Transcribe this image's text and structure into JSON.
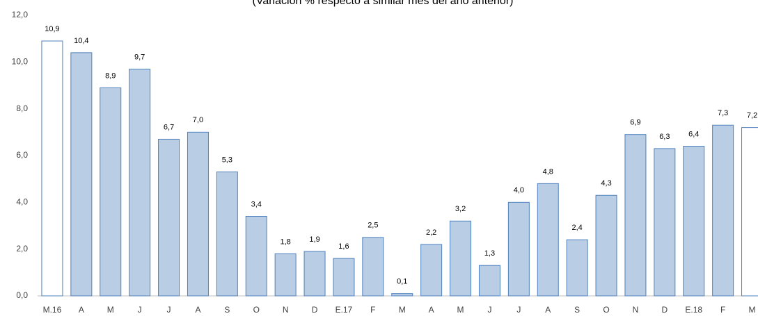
{
  "chart_data": {
    "type": "bar",
    "subtitle": "(Variación % respecto a similar mes del año anterior)",
    "categories": [
      "M.16",
      "A",
      "M",
      "J",
      "J",
      "A",
      "S",
      "O",
      "N",
      "D",
      "E.17",
      "F",
      "M",
      "A",
      "M",
      "J",
      "J",
      "A",
      "S",
      "O",
      "N",
      "D",
      "E.18",
      "F",
      "M"
    ],
    "values": [
      10.9,
      10.4,
      8.9,
      9.7,
      6.7,
      7.0,
      5.3,
      3.4,
      1.8,
      1.9,
      1.6,
      2.5,
      0.1,
      2.2,
      3.2,
      1.3,
      4.0,
      4.8,
      2.4,
      4.3,
      6.9,
      6.3,
      6.4,
      7.3,
      7.2
    ],
    "value_labels": [
      "10,9",
      "10,4",
      "8,9",
      "9,7",
      "6,7",
      "7,0",
      "5,3",
      "3,4",
      "1,8",
      "1,9",
      "1,6",
      "2,5",
      "0,1",
      "2,2",
      "3,2",
      "1,3",
      "4,0",
      "4,8",
      "2,4",
      "4,3",
      "6,9",
      "6,3",
      "6,4",
      "7,3",
      "7,2"
    ],
    "colors": [
      "#ffffff",
      "#b9cde5",
      "#b9cde5",
      "#b9cde5",
      "#b9cde5",
      "#b9cde5",
      "#b9cde5",
      "#b9cde5",
      "#b9cde5",
      "#b9cde5",
      "#b9cde5",
      "#b9cde5",
      "#b9cde5",
      "#b9cde5",
      "#b9cde5",
      "#b9cde5",
      "#b9cde5",
      "#b9cde5",
      "#b9cde5",
      "#b9cde5",
      "#b9cde5",
      "#b9cde5",
      "#b9cde5",
      "#b9cde5",
      "#ffffff"
    ],
    "edge_color": "#4f81bd",
    "ylim": [
      0,
      12
    ],
    "yticks": [
      {
        "value": 0,
        "label": "0,0"
      },
      {
        "value": 2,
        "label": "2,0"
      },
      {
        "value": 4,
        "label": "4,0"
      },
      {
        "value": 6,
        "label": "6,0"
      },
      {
        "value": 8,
        "label": "8,0"
      },
      {
        "value": 10,
        "label": "10,0"
      },
      {
        "value": 12,
        "label": "12,0"
      }
    ],
    "grid": false
  }
}
